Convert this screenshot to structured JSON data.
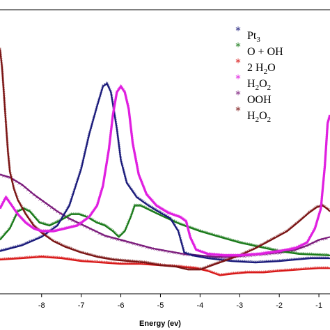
{
  "chart_data": {
    "type": "scatter",
    "title": "",
    "xlabel": "Energy (ev)",
    "ylabel": "",
    "xlim": [
      -9.05,
      -0.72
    ],
    "ylim": [
      0,
      1
    ],
    "x_ticks": [
      -8,
      -7,
      -6,
      -5,
      -4,
      -3,
      -2,
      -1
    ],
    "x_tick_labels": [
      "-8",
      "-7",
      "-6",
      "-5",
      "-4",
      "-3",
      "-2",
      "-1"
    ],
    "grid": false,
    "legend_position": "top-right",
    "series": [
      {
        "name": "Pt3",
        "legend_main": "Pt",
        "legend_sub": "3",
        "color": "#1a1a7a",
        "points": [
          [
            -9.05,
            0.15
          ],
          [
            -8.5,
            0.17
          ],
          [
            -8.0,
            0.2
          ],
          [
            -7.6,
            0.24
          ],
          [
            -7.3,
            0.31
          ],
          [
            -7.0,
            0.44
          ],
          [
            -6.8,
            0.56
          ],
          [
            -6.6,
            0.66
          ],
          [
            -6.45,
            0.73
          ],
          [
            -6.35,
            0.74
          ],
          [
            -6.25,
            0.71
          ],
          [
            -6.1,
            0.58
          ],
          [
            -6.0,
            0.47
          ],
          [
            -5.85,
            0.39
          ],
          [
            -5.6,
            0.34
          ],
          [
            -5.3,
            0.31
          ],
          [
            -5.0,
            0.285
          ],
          [
            -4.75,
            0.265
          ],
          [
            -4.55,
            0.22
          ],
          [
            -4.4,
            0.145
          ],
          [
            -4.2,
            0.135
          ],
          [
            -3.8,
            0.125
          ],
          [
            -3.2,
            0.115
          ],
          [
            -2.6,
            0.11
          ],
          [
            -2.0,
            0.115
          ],
          [
            -1.6,
            0.12
          ],
          [
            -1.2,
            0.125
          ],
          [
            -0.72,
            0.125
          ]
        ]
      },
      {
        "name": "O + OH",
        "legend_main": "O + OH",
        "legend_sub": "",
        "color": "#1a7a1a",
        "points": [
          [
            -9.05,
            0.19
          ],
          [
            -8.8,
            0.23
          ],
          [
            -8.6,
            0.29
          ],
          [
            -8.45,
            0.3
          ],
          [
            -8.3,
            0.29
          ],
          [
            -8.05,
            0.25
          ],
          [
            -7.8,
            0.24
          ],
          [
            -7.5,
            0.26
          ],
          [
            -7.25,
            0.28
          ],
          [
            -7.05,
            0.28
          ],
          [
            -6.85,
            0.27
          ],
          [
            -6.6,
            0.25
          ],
          [
            -6.4,
            0.24
          ],
          [
            -6.2,
            0.22
          ],
          [
            -6.05,
            0.2
          ],
          [
            -5.9,
            0.22
          ],
          [
            -5.75,
            0.27
          ],
          [
            -5.65,
            0.31
          ],
          [
            -5.5,
            0.31
          ],
          [
            -5.2,
            0.29
          ],
          [
            -4.9,
            0.27
          ],
          [
            -4.5,
            0.245
          ],
          [
            -4.0,
            0.22
          ],
          [
            -3.5,
            0.2
          ],
          [
            -3.0,
            0.18
          ],
          [
            -2.5,
            0.165
          ],
          [
            -2.0,
            0.15
          ],
          [
            -1.5,
            0.14
          ],
          [
            -0.72,
            0.135
          ]
        ]
      },
      {
        "name": "2 H2O",
        "legend_main": "2 H",
        "legend_sub": "2",
        "legend_tail": "O",
        "color": "#d81818",
        "points": [
          [
            -9.05,
            0.12
          ],
          [
            -8.5,
            0.125
          ],
          [
            -8.0,
            0.13
          ],
          [
            -7.5,
            0.125
          ],
          [
            -7.0,
            0.115
          ],
          [
            -6.5,
            0.11
          ],
          [
            -6.0,
            0.105
          ],
          [
            -5.5,
            0.105
          ],
          [
            -5.0,
            0.1
          ],
          [
            -4.5,
            0.095
          ],
          [
            -4.1,
            0.09
          ],
          [
            -3.8,
            0.08
          ],
          [
            -3.5,
            0.065
          ],
          [
            -3.2,
            0.07
          ],
          [
            -2.8,
            0.075
          ],
          [
            -2.4,
            0.075
          ],
          [
            -2.0,
            0.08
          ],
          [
            -1.5,
            0.085
          ],
          [
            -1.0,
            0.09
          ],
          [
            -0.72,
            0.09
          ]
        ]
      },
      {
        "name": "H2O2",
        "legend_main": "H",
        "legend_sub": "2",
        "legend_tail": "O2",
        "color": "#e020e0",
        "points": [
          [
            -9.05,
            0.3
          ],
          [
            -8.9,
            0.34
          ],
          [
            -8.75,
            0.31
          ],
          [
            -8.6,
            0.28
          ],
          [
            -8.4,
            0.25
          ],
          [
            -8.2,
            0.23
          ],
          [
            -8.0,
            0.22
          ],
          [
            -7.7,
            0.22
          ],
          [
            -7.4,
            0.23
          ],
          [
            -7.1,
            0.24
          ],
          [
            -6.8,
            0.27
          ],
          [
            -6.6,
            0.31
          ],
          [
            -6.45,
            0.38
          ],
          [
            -6.3,
            0.51
          ],
          [
            -6.2,
            0.63
          ],
          [
            -6.1,
            0.71
          ],
          [
            -6.0,
            0.73
          ],
          [
            -5.9,
            0.71
          ],
          [
            -5.8,
            0.65
          ],
          [
            -5.7,
            0.53
          ],
          [
            -5.55,
            0.42
          ],
          [
            -5.35,
            0.35
          ],
          [
            -5.1,
            0.31
          ],
          [
            -4.8,
            0.285
          ],
          [
            -4.5,
            0.27
          ],
          [
            -4.35,
            0.255
          ],
          [
            -4.25,
            0.2
          ],
          [
            -4.1,
            0.155
          ],
          [
            -3.8,
            0.14
          ],
          [
            -3.4,
            0.135
          ],
          [
            -3.0,
            0.135
          ],
          [
            -2.5,
            0.14
          ],
          [
            -2.0,
            0.15
          ],
          [
            -1.6,
            0.16
          ],
          [
            -1.3,
            0.18
          ],
          [
            -1.1,
            0.23
          ],
          [
            -0.95,
            0.3
          ],
          [
            -0.85,
            0.45
          ],
          [
            -0.78,
            0.6
          ],
          [
            -0.72,
            0.63
          ]
        ]
      },
      {
        "name": "OOH",
        "legend_main": "OOH",
        "legend_sub": "",
        "color": "#7a1a7a",
        "points": [
          [
            -9.05,
            0.42
          ],
          [
            -8.8,
            0.41
          ],
          [
            -8.5,
            0.385
          ],
          [
            -8.2,
            0.35
          ],
          [
            -7.9,
            0.32
          ],
          [
            -7.6,
            0.29
          ],
          [
            -7.3,
            0.265
          ],
          [
            -7.0,
            0.245
          ],
          [
            -6.7,
            0.225
          ],
          [
            -6.4,
            0.205
          ],
          [
            -6.0,
            0.19
          ],
          [
            -5.6,
            0.175
          ],
          [
            -5.2,
            0.16
          ],
          [
            -4.8,
            0.15
          ],
          [
            -4.4,
            0.14
          ],
          [
            -4.0,
            0.135
          ],
          [
            -3.6,
            0.13
          ],
          [
            -3.2,
            0.13
          ],
          [
            -2.8,
            0.135
          ],
          [
            -2.4,
            0.14
          ],
          [
            -2.0,
            0.145
          ],
          [
            -1.6,
            0.155
          ],
          [
            -1.3,
            0.17
          ],
          [
            -1.0,
            0.19
          ],
          [
            -0.72,
            0.2
          ]
        ]
      },
      {
        "name": "H2O2",
        "legend_main": "H",
        "legend_sub": "2",
        "legend_tail": "O2",
        "color": "#7a1414",
        "points": [
          [
            -9.05,
            0.86
          ],
          [
            -9.0,
            0.8
          ],
          [
            -8.95,
            0.7
          ],
          [
            -8.9,
            0.6
          ],
          [
            -8.85,
            0.5
          ],
          [
            -8.8,
            0.43
          ],
          [
            -8.7,
            0.37
          ],
          [
            -8.6,
            0.33
          ],
          [
            -8.4,
            0.28
          ],
          [
            -8.2,
            0.24
          ],
          [
            -8.0,
            0.215
          ],
          [
            -7.7,
            0.185
          ],
          [
            -7.4,
            0.165
          ],
          [
            -7.0,
            0.145
          ],
          [
            -6.6,
            0.13
          ],
          [
            -6.2,
            0.12
          ],
          [
            -5.8,
            0.115
          ],
          [
            -5.4,
            0.11
          ],
          [
            -5.0,
            0.1
          ],
          [
            -4.6,
            0.095
          ],
          [
            -4.3,
            0.085
          ],
          [
            -4.0,
            0.085
          ],
          [
            -3.7,
            0.1
          ],
          [
            -3.4,
            0.115
          ],
          [
            -3.0,
            0.135
          ],
          [
            -2.6,
            0.16
          ],
          [
            -2.2,
            0.19
          ],
          [
            -1.8,
            0.22
          ],
          [
            -1.5,
            0.255
          ],
          [
            -1.25,
            0.285
          ],
          [
            -1.05,
            0.305
          ],
          [
            -0.9,
            0.31
          ],
          [
            -0.8,
            0.3
          ],
          [
            -0.72,
            0.29
          ]
        ]
      }
    ]
  }
}
